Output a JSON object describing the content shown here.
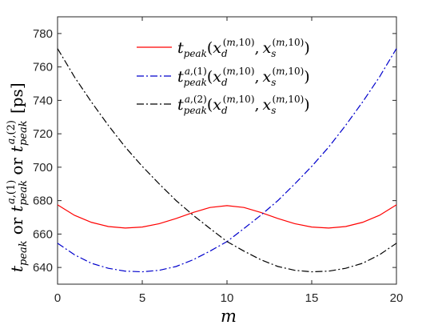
{
  "chart_data": {
    "type": "line",
    "x": [
      0,
      1,
      2,
      3,
      4,
      5,
      6,
      7,
      8,
      9,
      10,
      11,
      12,
      13,
      14,
      15,
      16,
      17,
      18,
      19,
      20
    ],
    "xlim": [
      0,
      20
    ],
    "ylim": [
      630,
      790
    ],
    "xticks": [
      0,
      5,
      10,
      15,
      20
    ],
    "yticks": [
      640,
      660,
      680,
      700,
      720,
      740,
      760,
      780
    ],
    "xlabel": "m",
    "ylabel": "t_peak or t_peak^{a,(1)} or t_peak^{a,(2)} [ps]",
    "grid": false,
    "legend_position": "top-center",
    "series": [
      {
        "name": "t_peak(x_d^(m,10), x_s^(m,10))",
        "color": "#ff0000",
        "dash": "solid",
        "values": [
          677.5,
          671.2,
          667.0,
          664.5,
          663.6,
          664.2,
          666.2,
          669.3,
          672.9,
          675.9,
          677.0,
          675.9,
          672.9,
          669.3,
          666.2,
          664.2,
          663.6,
          664.5,
          667.0,
          671.2,
          677.5
        ]
      },
      {
        "name": "t_peak^{a,(1)}(x_d^(m,10), x_s^(m,10))",
        "color": "#0000cc",
        "dash": "dashdot",
        "values": [
          654.5,
          647.6,
          642.5,
          639.5,
          637.8,
          637.4,
          638.3,
          640.6,
          644.6,
          649.8,
          655.5,
          663.3,
          671.3,
          680.0,
          690.0,
          700.5,
          712.0,
          725.0,
          739.0,
          754.0,
          771.0
        ]
      },
      {
        "name": "t_peak^{a,(2)}(x_d^(m,10), x_s^(m,10))",
        "color": "#000000",
        "dash": "dashdot",
        "values": [
          771.0,
          754.0,
          739.0,
          725.0,
          712.0,
          700.5,
          690.0,
          680.0,
          671.3,
          663.3,
          655.5,
          649.8,
          644.6,
          640.6,
          638.3,
          637.4,
          637.8,
          639.5,
          642.5,
          647.6,
          654.5
        ]
      }
    ]
  }
}
